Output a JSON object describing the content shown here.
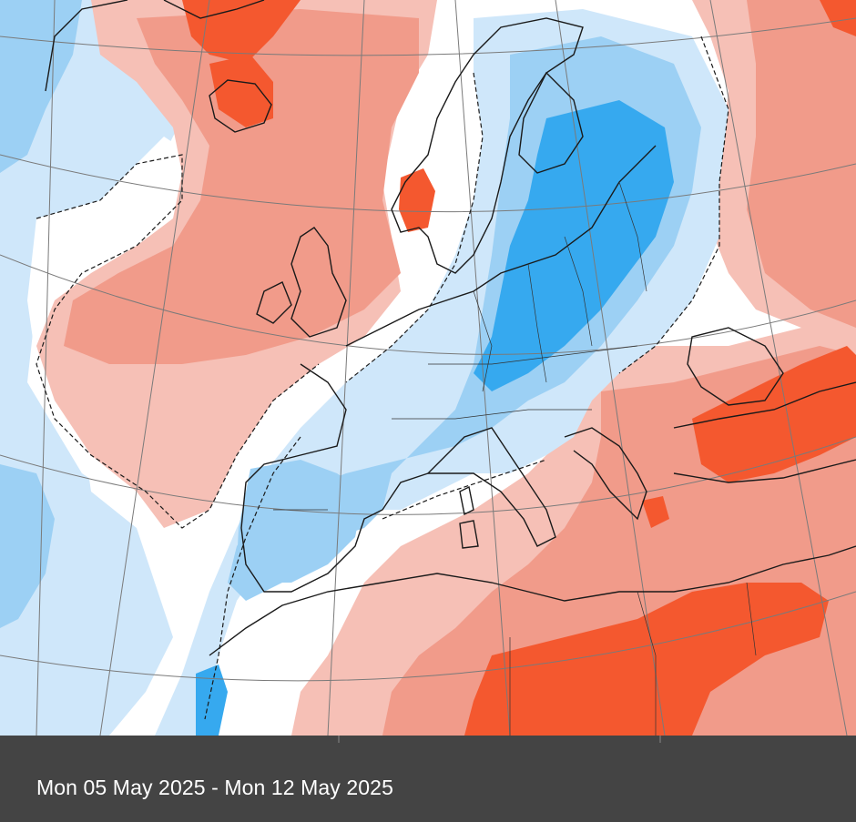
{
  "map": {
    "title_alt": "Temperature anomaly map of Europe",
    "colors": {
      "sea_bg": "#ffffff",
      "warm_light": "#f6c0b6",
      "warm_mid": "#f19b8a",
      "warm_strong": "#f4582f",
      "cold_light": "#cfe7fa",
      "cold_mid": "#9cd0f4",
      "cold_strong": "#36a9ef",
      "outline": "#1a1a1a",
      "grid": "#7a7a7a"
    }
  },
  "caption": {
    "date_range": "Mon 05 May 2025 - Mon 12 May 2025",
    "bar_color": "#444444"
  }
}
